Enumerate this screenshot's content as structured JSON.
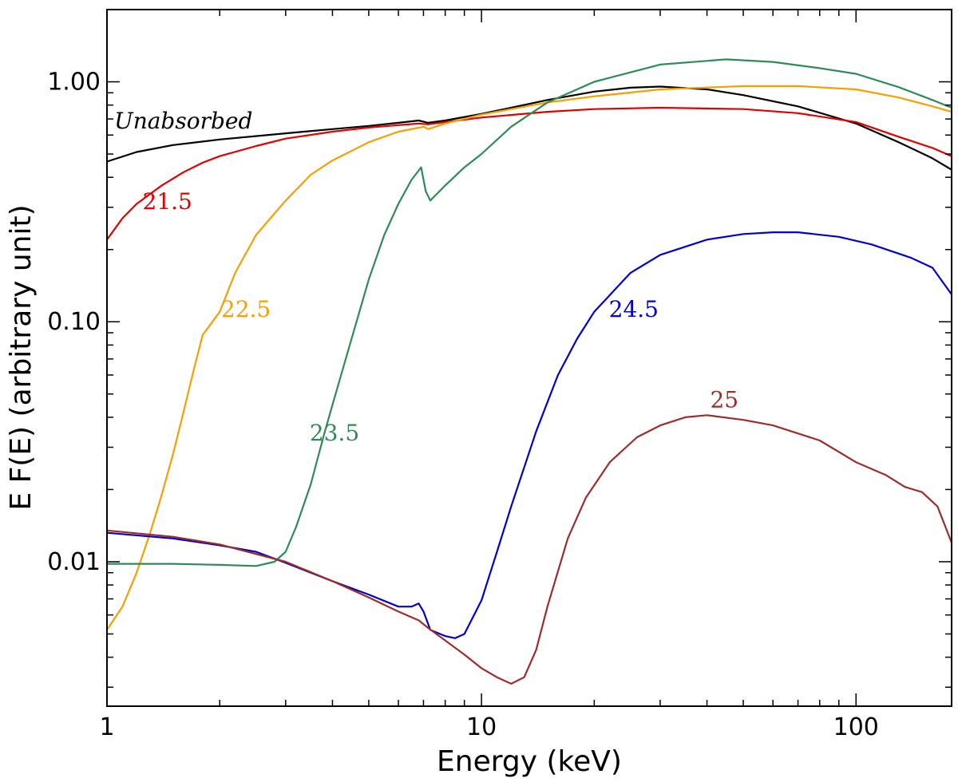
{
  "chart_data": {
    "type": "line",
    "xscale": "log",
    "yscale": "log",
    "xlabel": "Energy (keV)",
    "ylabel": "E F(E) (arbitrary unit)",
    "xlim": [
      1,
      180
    ],
    "ylim": [
      0.0025,
      2.0
    ],
    "xticks": [
      {
        "value": 1,
        "label": "1"
      },
      {
        "value": 10,
        "label": "10"
      },
      {
        "value": 100,
        "label": "100"
      }
    ],
    "yticks": [
      {
        "value": 0.01,
        "label": "0.01"
      },
      {
        "value": 0.1,
        "label": "0.10"
      },
      {
        "value": 1.0,
        "label": "1.00"
      }
    ],
    "series": [
      {
        "name": "Unabsorbed",
        "label": "Unabsorbed",
        "color": "#000000",
        "label_at": [
          1.6,
          0.64
        ],
        "points": [
          [
            1,
            0.465
          ],
          [
            1.2,
            0.51
          ],
          [
            1.5,
            0.545
          ],
          [
            2,
            0.575
          ],
          [
            3,
            0.61
          ],
          [
            4,
            0.635
          ],
          [
            5,
            0.655
          ],
          [
            6,
            0.675
          ],
          [
            6.8,
            0.69
          ],
          [
            7.2,
            0.675
          ],
          [
            8,
            0.69
          ],
          [
            10,
            0.735
          ],
          [
            12,
            0.78
          ],
          [
            15,
            0.84
          ],
          [
            20,
            0.91
          ],
          [
            25,
            0.945
          ],
          [
            30,
            0.955
          ],
          [
            40,
            0.93
          ],
          [
            50,
            0.88
          ],
          [
            70,
            0.79
          ],
          [
            100,
            0.67
          ],
          [
            130,
            0.56
          ],
          [
            160,
            0.48
          ],
          [
            180,
            0.43
          ]
        ]
      },
      {
        "name": "21.5",
        "label": "21.5",
        "color": "#e00000",
        "label_at": [
          1.45,
          0.295
        ],
        "points": [
          [
            1,
            0.22
          ],
          [
            1.1,
            0.27
          ],
          [
            1.2,
            0.31
          ],
          [
            1.4,
            0.37
          ],
          [
            1.6,
            0.42
          ],
          [
            1.8,
            0.46
          ],
          [
            2,
            0.49
          ],
          [
            2.5,
            0.54
          ],
          [
            3,
            0.58
          ],
          [
            4,
            0.62
          ],
          [
            5,
            0.645
          ],
          [
            6,
            0.66
          ],
          [
            6.8,
            0.67
          ],
          [
            7.2,
            0.665
          ],
          [
            8,
            0.68
          ],
          [
            10,
            0.71
          ],
          [
            15,
            0.75
          ],
          [
            20,
            0.77
          ],
          [
            30,
            0.78
          ],
          [
            50,
            0.77
          ],
          [
            70,
            0.74
          ],
          [
            100,
            0.68
          ],
          [
            130,
            0.59
          ],
          [
            160,
            0.53
          ],
          [
            180,
            0.49
          ]
        ]
      },
      {
        "name": "22.5",
        "label": "22.5",
        "color": "#f5a000",
        "label_at": [
          2.35,
          0.105
        ],
        "points": [
          [
            1,
            0.0052
          ],
          [
            1.1,
            0.0065
          ],
          [
            1.2,
            0.009
          ],
          [
            1.3,
            0.013
          ],
          [
            1.4,
            0.019
          ],
          [
            1.5,
            0.028
          ],
          [
            1.6,
            0.042
          ],
          [
            1.7,
            0.062
          ],
          [
            1.8,
            0.088
          ],
          [
            2,
            0.11
          ],
          [
            2.2,
            0.16
          ],
          [
            2.5,
            0.23
          ],
          [
            3,
            0.32
          ],
          [
            3.5,
            0.41
          ],
          [
            4,
            0.47
          ],
          [
            5,
            0.56
          ],
          [
            6,
            0.62
          ],
          [
            7,
            0.65
          ],
          [
            7.2,
            0.635
          ],
          [
            8,
            0.67
          ],
          [
            10,
            0.73
          ],
          [
            12,
            0.77
          ],
          [
            15,
            0.82
          ],
          [
            20,
            0.87
          ],
          [
            30,
            0.93
          ],
          [
            50,
            0.96
          ],
          [
            70,
            0.96
          ],
          [
            100,
            0.93
          ],
          [
            130,
            0.86
          ],
          [
            160,
            0.79
          ],
          [
            180,
            0.75
          ]
        ]
      },
      {
        "name": "23.5",
        "label": "23.5",
        "color": "#2e8b57",
        "label_at": [
          4.05,
          0.032
        ],
        "points": [
          [
            1,
            0.0098
          ],
          [
            1.5,
            0.0098
          ],
          [
            2,
            0.0097
          ],
          [
            2.5,
            0.0096
          ],
          [
            2.8,
            0.01
          ],
          [
            3,
            0.011
          ],
          [
            3.2,
            0.014
          ],
          [
            3.5,
            0.021
          ],
          [
            3.8,
            0.034
          ],
          [
            4,
            0.045
          ],
          [
            4.5,
            0.085
          ],
          [
            5,
            0.15
          ],
          [
            5.5,
            0.23
          ],
          [
            6,
            0.31
          ],
          [
            6.5,
            0.39
          ],
          [
            6.9,
            0.44
          ],
          [
            7.1,
            0.35
          ],
          [
            7.3,
            0.32
          ],
          [
            8,
            0.37
          ],
          [
            9,
            0.44
          ],
          [
            10,
            0.5
          ],
          [
            12,
            0.65
          ],
          [
            15,
            0.82
          ],
          [
            20,
            1.0
          ],
          [
            30,
            1.18
          ],
          [
            45,
            1.24
          ],
          [
            60,
            1.21
          ],
          [
            80,
            1.14
          ],
          [
            100,
            1.08
          ],
          [
            130,
            0.95
          ],
          [
            160,
            0.84
          ],
          [
            180,
            0.78
          ]
        ]
      },
      {
        "name": "24.5",
        "label": "24.5",
        "color": "#0000d0",
        "label_at": [
          25.5,
          0.105
        ],
        "points": [
          [
            1,
            0.0132
          ],
          [
            1.5,
            0.0125
          ],
          [
            2,
            0.0117
          ],
          [
            2.5,
            0.011
          ],
          [
            3,
            0.0099
          ],
          [
            4,
            0.0083
          ],
          [
            5,
            0.0073
          ],
          [
            6,
            0.0065
          ],
          [
            6.5,
            0.0065
          ],
          [
            6.8,
            0.0067
          ],
          [
            7,
            0.0062
          ],
          [
            7.3,
            0.0052
          ],
          [
            8,
            0.0049
          ],
          [
            8.5,
            0.0048
          ],
          [
            9,
            0.005
          ],
          [
            10,
            0.0069
          ],
          [
            11,
            0.011
          ],
          [
            12,
            0.017
          ],
          [
            14,
            0.035
          ],
          [
            16,
            0.06
          ],
          [
            18,
            0.085
          ],
          [
            20,
            0.11
          ],
          [
            25,
            0.16
          ],
          [
            30,
            0.19
          ],
          [
            40,
            0.22
          ],
          [
            50,
            0.232
          ],
          [
            60,
            0.236
          ],
          [
            70,
            0.236
          ],
          [
            90,
            0.226
          ],
          [
            110,
            0.21
          ],
          [
            140,
            0.185
          ],
          [
            160,
            0.168
          ],
          [
            180,
            0.13
          ]
        ]
      },
      {
        "name": "25",
        "label": "25",
        "color": "#9b2d2a",
        "label_at": [
          44.5,
          0.044
        ],
        "points": [
          [
            1,
            0.0135
          ],
          [
            1.5,
            0.0127
          ],
          [
            2,
            0.0118
          ],
          [
            3,
            0.01
          ],
          [
            4,
            0.0083
          ],
          [
            5,
            0.0071
          ],
          [
            6,
            0.0062
          ],
          [
            6.8,
            0.0057
          ],
          [
            7.2,
            0.0053
          ],
          [
            8,
            0.0047
          ],
          [
            9,
            0.0041
          ],
          [
            10,
            0.0036
          ],
          [
            11,
            0.0033
          ],
          [
            12,
            0.0031
          ],
          [
            13,
            0.0033
          ],
          [
            14,
            0.0043
          ],
          [
            15,
            0.0065
          ],
          [
            17,
            0.0125
          ],
          [
            19,
            0.0185
          ],
          [
            22,
            0.026
          ],
          [
            26,
            0.033
          ],
          [
            30,
            0.037
          ],
          [
            35,
            0.04
          ],
          [
            40,
            0.0408
          ],
          [
            50,
            0.039
          ],
          [
            60,
            0.037
          ],
          [
            80,
            0.032
          ],
          [
            100,
            0.026
          ],
          [
            120,
            0.023
          ],
          [
            135,
            0.0205
          ],
          [
            150,
            0.0195
          ],
          [
            165,
            0.017
          ],
          [
            180,
            0.012
          ]
        ]
      }
    ]
  }
}
